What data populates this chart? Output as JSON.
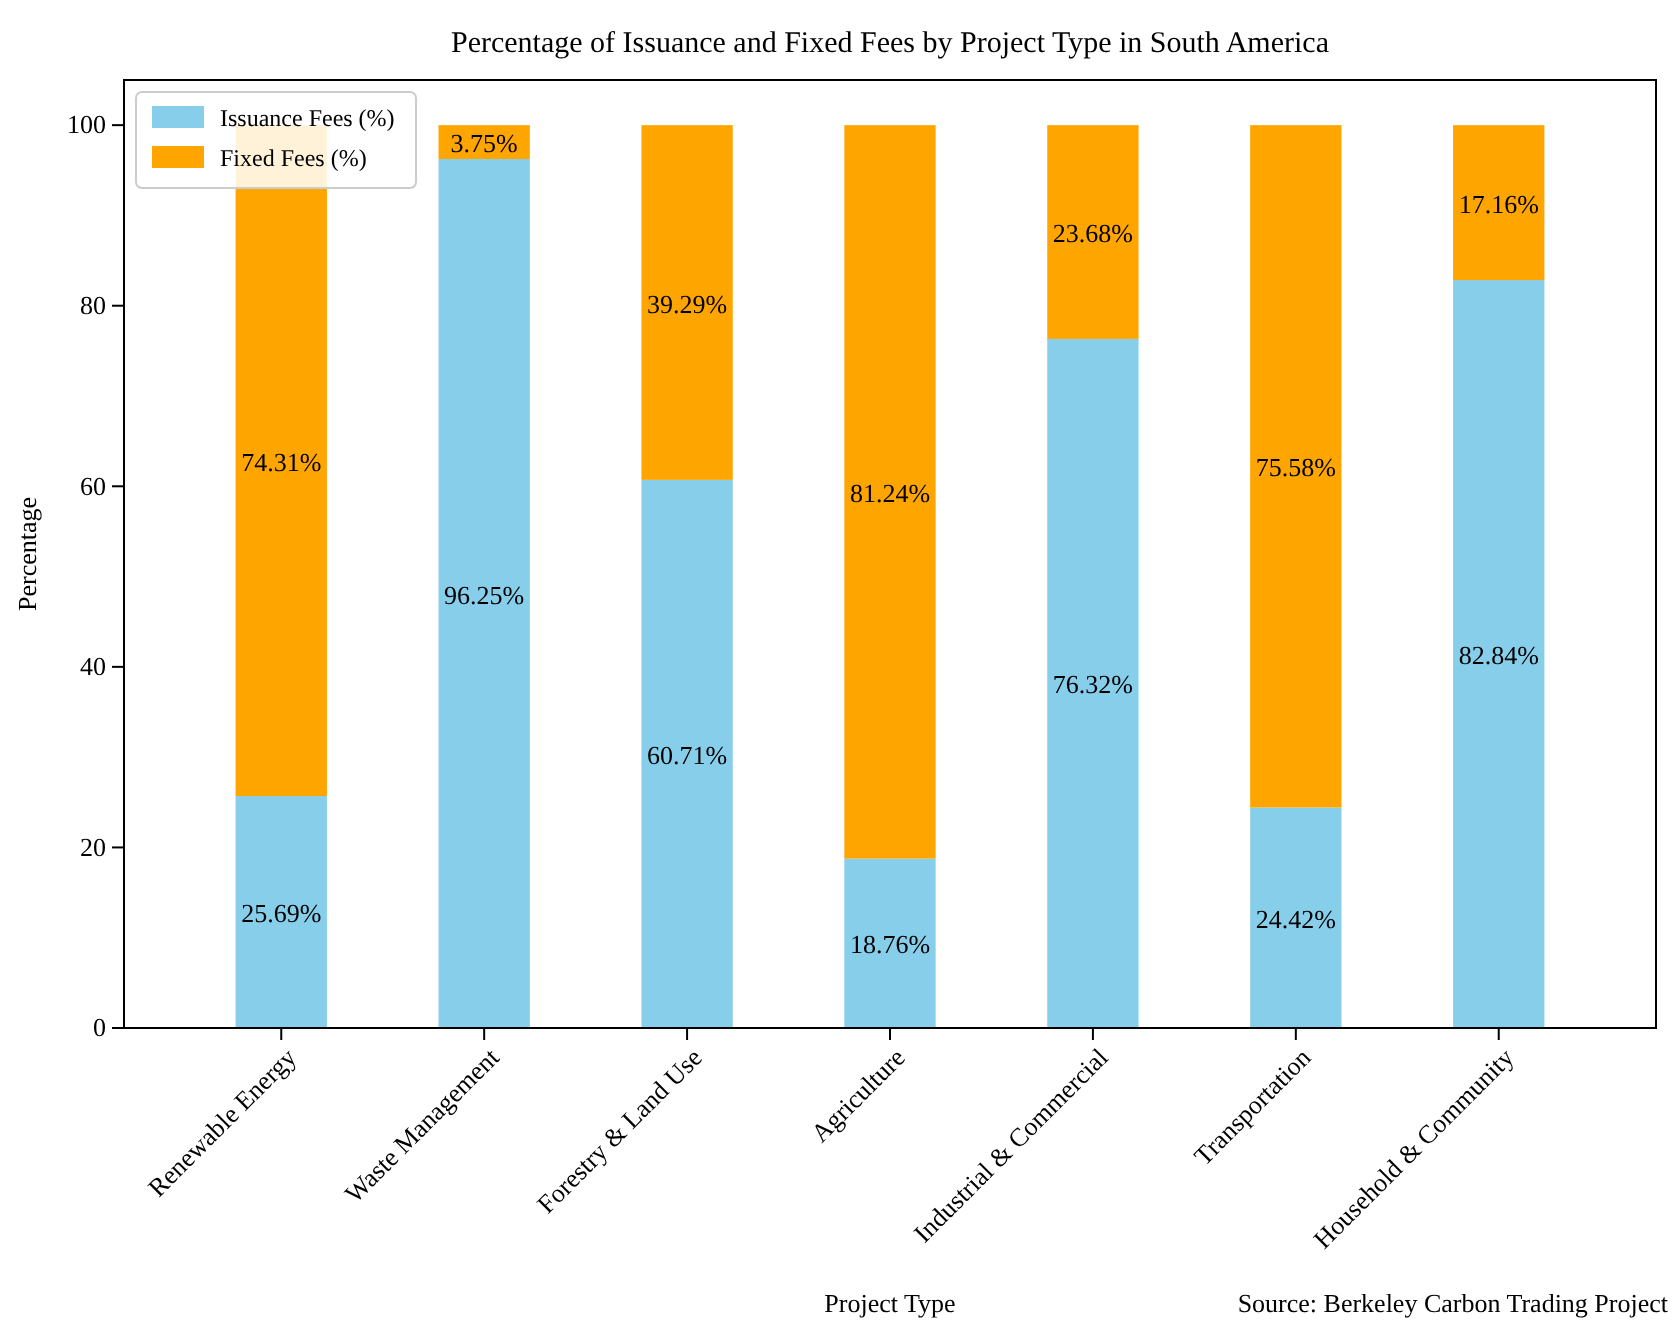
{
  "chart_data": {
    "type": "bar",
    "title": "Percentage of Issuance and Fixed Fees by Project Type in South America",
    "xlabel": "Project Type",
    "ylabel": "Percentage",
    "categories": [
      "Renewable Energy",
      "Waste Management",
      "Forestry & Land Use",
      "Agriculture",
      "Industrial & Commercial",
      "Transportation",
      "Household & Community"
    ],
    "stacked": true,
    "ylim": [
      0,
      105
    ],
    "yticks": [
      0,
      20,
      40,
      60,
      80,
      100
    ],
    "legend": "top left",
    "series": [
      {
        "name": "Issuance Fees (%)",
        "color": "#87ceeb",
        "values": [
          25.69,
          96.25,
          60.71,
          18.76,
          76.32,
          24.42,
          82.84
        ],
        "value_labels": [
          "25.69%",
          "96.25%",
          "60.71%",
          "18.76%",
          "76.32%",
          "24.42%",
          "82.84%"
        ]
      },
      {
        "name": "Fixed Fees (%)",
        "color": "#ffa500",
        "values": [
          74.31,
          3.75,
          39.29,
          81.24,
          23.68,
          75.58,
          17.16
        ],
        "value_labels": [
          "74.31%",
          "3.75%",
          "39.29%",
          "81.24%",
          "23.68%",
          "75.58%",
          "17.16%"
        ]
      }
    ],
    "annotations": [
      "Source: Berkeley Carbon Trading Project"
    ]
  }
}
